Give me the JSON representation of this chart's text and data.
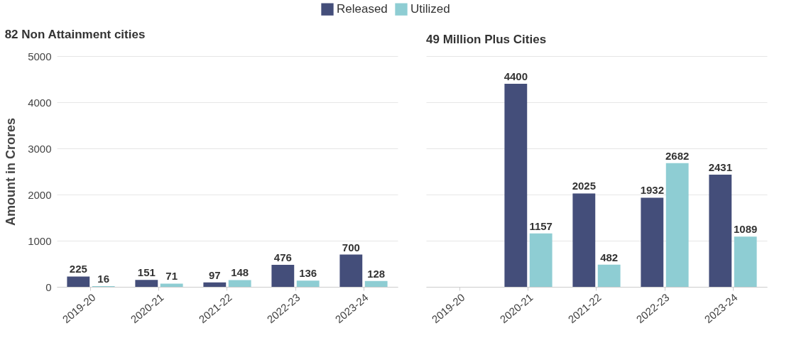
{
  "chart_data": [
    {
      "type": "bar",
      "title": "82 Non Attainment cities",
      "ylabel": "Amount in Crores",
      "categories": [
        "2019-20",
        "2020-21",
        "2021-22",
        "2022-23",
        "2023-24"
      ],
      "series": [
        {
          "name": "Released",
          "color": "#444e7a",
          "values": [
            225,
            151,
            97,
            476,
            700
          ]
        },
        {
          "name": "Utilized",
          "color": "#8ecdd3",
          "values": [
            16,
            71,
            148,
            136,
            128
          ]
        }
      ],
      "ylim": [
        0,
        5000
      ],
      "yticks": [
        0,
        1000,
        2000,
        3000,
        4000,
        5000
      ],
      "grid": "y",
      "legend": "top",
      "data_labels": true
    },
    {
      "type": "bar",
      "title": "49 Million Plus Cities",
      "categories": [
        "2019-20",
        "2020-21",
        "2021-22",
        "2022-23",
        "2023-24"
      ],
      "series": [
        {
          "name": "Released",
          "color": "#444e7a",
          "values": [
            null,
            4400,
            2025,
            1932,
            2431
          ]
        },
        {
          "name": "Utilized",
          "color": "#8ecdd3",
          "values": [
            null,
            1157,
            482,
            2682,
            1089
          ]
        }
      ],
      "ylim": [
        0,
        5000
      ],
      "yticks": [
        0,
        1000,
        2000,
        3000,
        4000,
        5000
      ],
      "grid": "y",
      "legend": "top",
      "data_labels": true,
      "tick_labels": "x"
    }
  ]
}
